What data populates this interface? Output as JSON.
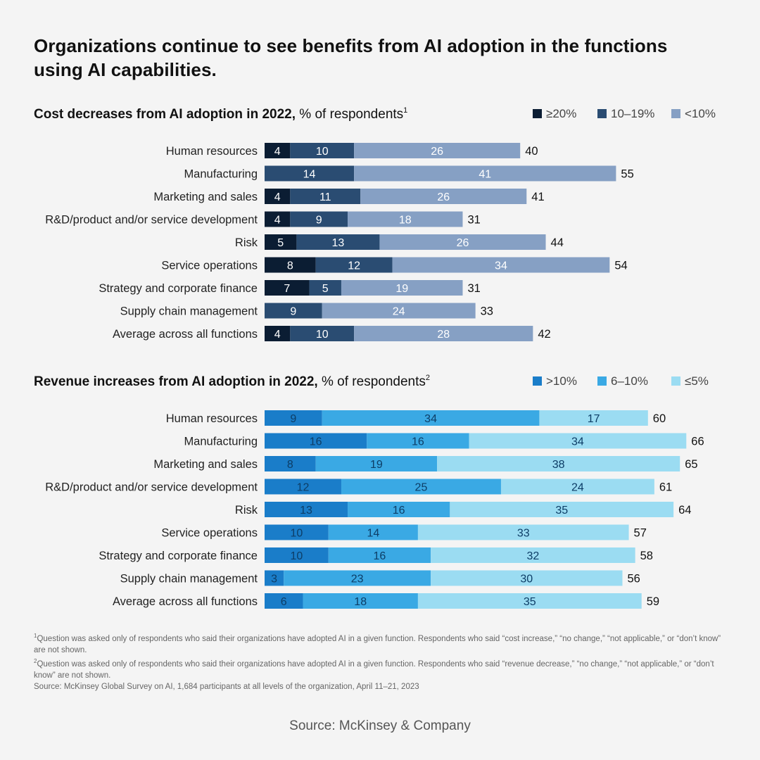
{
  "title_line1": "Organizations continue to see benefits from AI adoption in the functions",
  "title_line2": "using AI capabilities.",
  "chart_data": [
    {
      "type": "bar",
      "orientation": "horizontal",
      "stacked": true,
      "title_bold": "Cost decreases from AI adoption in 2022,",
      "title_rest": " % of respondents",
      "title_sup": "1",
      "categories": [
        "Human resources",
        "Manufacturing",
        "Marketing and sales",
        "R&D/product and/or service development",
        "Risk",
        "Service operations",
        "Strategy and corporate finance",
        "Supply chain management",
        "Average across all functions"
      ],
      "series": [
        {
          "name": "≥20%",
          "color": "#0b1d33",
          "values": [
            4,
            0,
            4,
            4,
            5,
            8,
            7,
            0,
            4
          ]
        },
        {
          "name": "10–19%",
          "color": "#2a4c72",
          "values": [
            10,
            14,
            11,
            9,
            13,
            12,
            5,
            9,
            10
          ]
        },
        {
          "name": "<10%",
          "color": "#86a0c4",
          "values": [
            26,
            41,
            26,
            18,
            26,
            34,
            19,
            24,
            28
          ]
        }
      ],
      "totals": [
        40,
        55,
        41,
        31,
        44,
        54,
        31,
        33,
        42
      ],
      "legend_position": "top-right"
    },
    {
      "type": "bar",
      "orientation": "horizontal",
      "stacked": true,
      "title_bold": "Revenue increases from AI adoption in 2022,",
      "title_rest": " % of respondents",
      "title_sup": "2",
      "categories": [
        "Human resources",
        "Manufacturing",
        "Marketing and sales",
        "R&D/product and/or service development",
        "Risk",
        "Service operations",
        "Strategy and corporate finance",
        "Supply chain management",
        "Average across all functions"
      ],
      "series": [
        {
          "name": ">10%",
          "color": "#1a7dc9",
          "values": [
            9,
            16,
            8,
            12,
            13,
            10,
            10,
            3,
            6
          ]
        },
        {
          "name": "6–10%",
          "color": "#3aa9e4",
          "values": [
            34,
            16,
            19,
            25,
            16,
            14,
            16,
            23,
            18
          ]
        },
        {
          "name": "≤5%",
          "color": "#9bdcf2",
          "values": [
            17,
            34,
            38,
            24,
            35,
            33,
            32,
            30,
            35
          ]
        }
      ],
      "totals": [
        60,
        66,
        65,
        61,
        64,
        57,
        58,
        56,
        59
      ],
      "legend_position": "top-right"
    }
  ],
  "footnotes": {
    "fn1_mark": "1",
    "fn1_text": "Question was asked only of respondents who said their organizations have adopted AI in a given function. Respondents who said “cost increase,” “no change,” “not applicable,” or “don’t know” are not shown.",
    "fn2_mark": "2",
    "fn2_text": "Question was asked only of respondents who said their organizations have adopted AI in a given function. Respondents who said “revenue decrease,” “no change,” “not applicable,” or “don’t know” are not shown.",
    "source": "Source: McKinsey Global Survey on AI, 1,684 participants at all levels of the organization, April 11–21, 2023"
  },
  "source_credit": "Source: McKinsey & Company"
}
